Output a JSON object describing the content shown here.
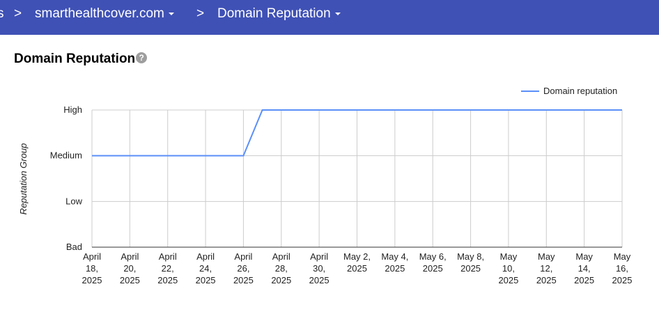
{
  "header": {
    "crumbs": [
      {
        "label": "s"
      },
      {
        "label": "smarthealthcover.com",
        "dropdown": true
      },
      {
        "label": "Domain Reputation",
        "dropdown": true
      }
    ],
    "separator": ">",
    "color": "#3f51b5"
  },
  "section": {
    "title": "Domain Reputation",
    "help_icon": "help-circle-icon",
    "help_glyph": "?"
  },
  "chart_data": {
    "type": "line",
    "title": "",
    "xlabel": "",
    "ylabel": "Reputation Group",
    "y_categories": [
      "Bad",
      "Low",
      "Medium",
      "High"
    ],
    "xlim": [
      "2025-04-18",
      "2025-05-16"
    ],
    "grid": true,
    "legend": {
      "position": "top-right"
    },
    "x_ticks": [
      {
        "date": "2025-04-18",
        "lines": [
          "April",
          "18,",
          "2025"
        ]
      },
      {
        "date": "2025-04-20",
        "lines": [
          "April",
          "20,",
          "2025"
        ]
      },
      {
        "date": "2025-04-22",
        "lines": [
          "April",
          "22,",
          "2025"
        ]
      },
      {
        "date": "2025-04-24",
        "lines": [
          "April",
          "24,",
          "2025"
        ]
      },
      {
        "date": "2025-04-26",
        "lines": [
          "April",
          "26,",
          "2025"
        ]
      },
      {
        "date": "2025-04-28",
        "lines": [
          "April",
          "28,",
          "2025"
        ]
      },
      {
        "date": "2025-04-30",
        "lines": [
          "April",
          "30,",
          "2025"
        ]
      },
      {
        "date": "2025-05-02",
        "lines": [
          "May 2,",
          "2025"
        ]
      },
      {
        "date": "2025-05-04",
        "lines": [
          "May 4,",
          "2025"
        ]
      },
      {
        "date": "2025-05-06",
        "lines": [
          "May 6,",
          "2025"
        ]
      },
      {
        "date": "2025-05-08",
        "lines": [
          "May 8,",
          "2025"
        ]
      },
      {
        "date": "2025-05-10",
        "lines": [
          "May",
          "10,",
          "2025"
        ]
      },
      {
        "date": "2025-05-12",
        "lines": [
          "May",
          "12,",
          "2025"
        ]
      },
      {
        "date": "2025-05-14",
        "lines": [
          "May",
          "14,",
          "2025"
        ]
      },
      {
        "date": "2025-05-16",
        "lines": [
          "May",
          "16,",
          "2025"
        ]
      }
    ],
    "series": [
      {
        "name": "Domain reputation",
        "color": "#5b8ff9",
        "points": [
          [
            "2025-04-18",
            "Medium"
          ],
          [
            "2025-04-26",
            "Medium"
          ],
          [
            "2025-04-27",
            "High"
          ],
          [
            "2025-05-16",
            "High"
          ]
        ]
      }
    ]
  }
}
